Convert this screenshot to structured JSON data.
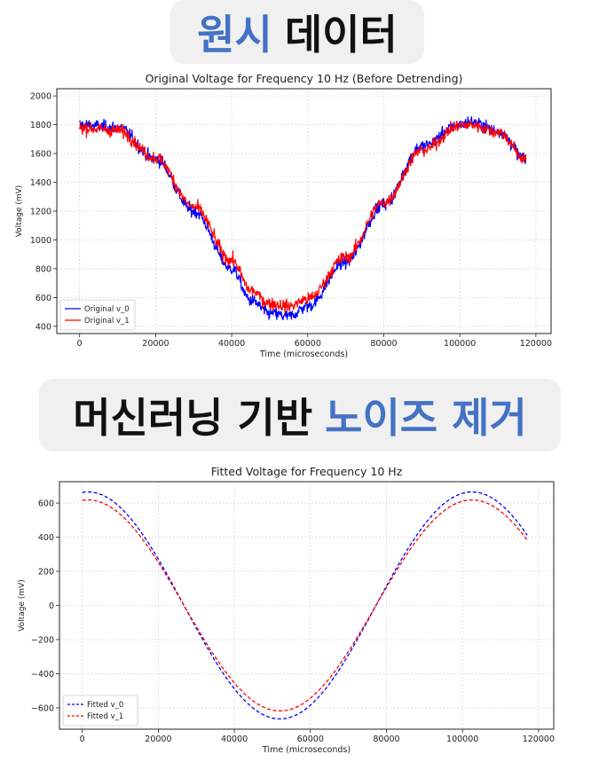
{
  "banners": {
    "top": {
      "highlight": "원시",
      "rest": "데이터",
      "highlight_color": "#4472c4"
    },
    "middle": {
      "rest": "머신러닝 기반",
      "highlight": "노이즈 제거",
      "highlight_color": "#4472c4"
    }
  },
  "chart_data": [
    {
      "type": "line",
      "title": "Original Voltage for Frequency 10 Hz (Before Detrending)",
      "xlabel": "Time (microseconds)",
      "ylabel": "Voltage (mV)",
      "xlim": [
        -6000,
        124000
      ],
      "ylim": [
        350,
        2050
      ],
      "xticks": [
        0,
        20000,
        40000,
        60000,
        80000,
        100000,
        120000
      ],
      "yticks": [
        400,
        600,
        800,
        1000,
        1200,
        1400,
        1600,
        1800,
        2000
      ],
      "grid": true,
      "legend_position": "lower-left",
      "noisy": true,
      "series": [
        {
          "name": "Original v_0",
          "color": "#0000ff",
          "style": "solid",
          "x": [
            0,
            10000,
            20000,
            30000,
            40000,
            45000,
            50000,
            55000,
            60000,
            70000,
            80000,
            90000,
            100000,
            103000,
            110000,
            117500
          ],
          "y": [
            1800,
            1780,
            1560,
            1200,
            800,
            580,
            490,
            470,
            540,
            850,
            1250,
            1650,
            1800,
            1820,
            1760,
            1560
          ]
        },
        {
          "name": "Original v_1",
          "color": "#ff0000",
          "style": "solid",
          "x": [
            0,
            10000,
            20000,
            30000,
            40000,
            45000,
            50000,
            55000,
            60000,
            70000,
            80000,
            90000,
            100000,
            103000,
            110000,
            117500
          ],
          "y": [
            1780,
            1760,
            1570,
            1230,
            860,
            650,
            560,
            540,
            590,
            880,
            1260,
            1620,
            1790,
            1800,
            1750,
            1560
          ]
        }
      ]
    },
    {
      "type": "line",
      "title": "Fitted Voltage for Frequency 10 Hz",
      "xlabel": "Time (microseconds)",
      "ylabel": "Voltage (mV)",
      "xlim": [
        -6000,
        124000
      ],
      "ylim": [
        -725,
        725
      ],
      "xticks": [
        0,
        20000,
        40000,
        60000,
        80000,
        100000,
        120000
      ],
      "yticks": [
        -600,
        -400,
        -200,
        0,
        200,
        400,
        600
      ],
      "ytick_labels": [
        "−600",
        "−400",
        "−200",
        "0",
        "200",
        "400",
        "600"
      ],
      "grid": true,
      "legend_position": "lower-left",
      "series": [
        {
          "name": "Fitted v_0",
          "color": "#0000ff",
          "style": "dashed",
          "amplitude": 665,
          "period": 101000,
          "phase": 1500,
          "x_end": 117500
        },
        {
          "name": "Fitted v_1",
          "color": "#ff0000",
          "style": "dashed",
          "amplitude": 618,
          "period": 101000,
          "phase": 1500,
          "x_end": 117500
        }
      ]
    }
  ]
}
